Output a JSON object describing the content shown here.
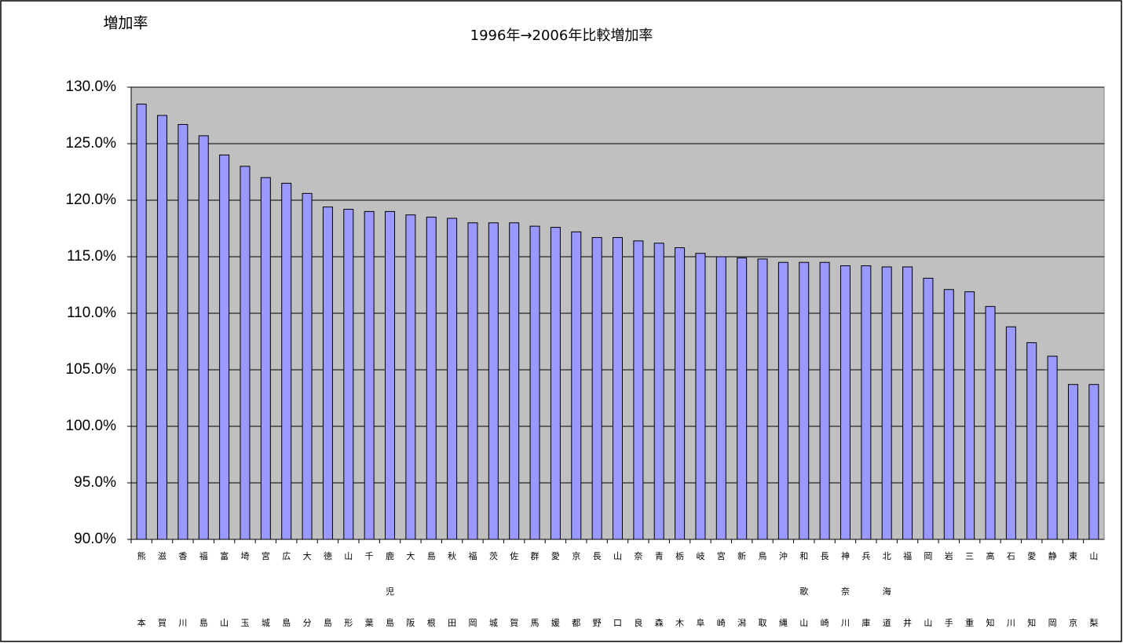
{
  "chart_data": {
    "type": "bar",
    "title": "1996年→2006年比較増加率",
    "y_label": "増加率",
    "categories": [
      "熊本",
      "滋賀",
      "香川",
      "福島",
      "富山",
      "埼玉",
      "宮城",
      "広島",
      "大分",
      "徳島",
      "山形",
      "千葉",
      "鹿児島",
      "大阪",
      "島根",
      "秋田",
      "福岡",
      "茨城",
      "佐賀",
      "群馬",
      "愛媛",
      "京都",
      "長野",
      "山口",
      "奈良",
      "青森",
      "栃木",
      "岐阜",
      "宮崎",
      "新潟",
      "鳥取",
      "沖縄",
      "和歌山",
      "長崎",
      "神奈川",
      "兵庫",
      "北海道",
      "福井",
      "岡山",
      "岩手",
      "三重",
      "高知",
      "石川",
      "愛知",
      "静岡",
      "東京",
      "山梨"
    ],
    "values": [
      128.5,
      127.5,
      126.7,
      125.7,
      124.0,
      123.0,
      122.0,
      121.5,
      120.6,
      119.4,
      119.2,
      119.0,
      119.0,
      118.7,
      118.5,
      118.4,
      118.0,
      118.0,
      118.0,
      117.7,
      117.6,
      117.2,
      116.7,
      116.7,
      116.4,
      116.2,
      115.8,
      115.3,
      115.0,
      114.9,
      114.8,
      114.5,
      114.5,
      114.5,
      114.2,
      114.2,
      114.1,
      114.1,
      113.1,
      112.1,
      111.9,
      110.6,
      108.8,
      107.4,
      106.2,
      103.7,
      103.7
    ],
    "color": "#9999ff",
    "ylim": [
      90,
      130
    ],
    "yticks": [
      {
        "value": 90,
        "label": "90.0%"
      },
      {
        "value": 95,
        "label": "95.0%"
      },
      {
        "value": 100,
        "label": "100.0%"
      },
      {
        "value": 105,
        "label": "105.0%"
      },
      {
        "value": 110,
        "label": "110.0%"
      },
      {
        "value": 115,
        "label": "115.0%"
      },
      {
        "value": 120,
        "label": "120.0%"
      },
      {
        "value": 125,
        "label": "125.0%"
      },
      {
        "value": 130,
        "label": "130.0%"
      }
    ],
    "grid": true
  }
}
